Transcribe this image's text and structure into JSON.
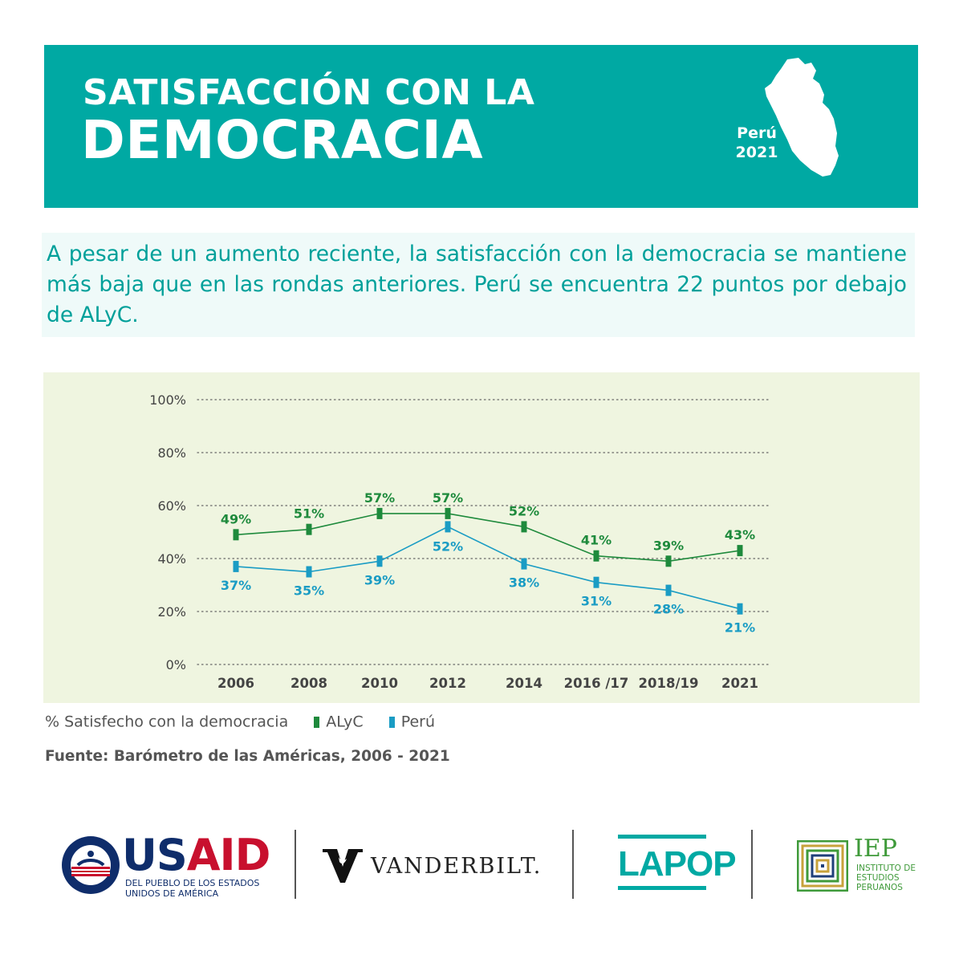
{
  "header": {
    "title_line1": "SATISFACCIÓN CON LA",
    "title_line2": "DEMOCRACIA",
    "country": "Perú",
    "year": "2021",
    "map_icon": "peru-map-icon",
    "background": "#00a9a3"
  },
  "intro": {
    "text": "A pesar de un aumento reciente, la satisfacción con la democracia se mantiene más baja que en las rondas anteriores. Perú se encuentra 22 puntos por debajo de ALyC."
  },
  "chart_data": {
    "type": "line",
    "categories": [
      "2006",
      "2008",
      "2010",
      "2012",
      "2014",
      "2016 /17",
      "2018/19",
      "2021"
    ],
    "series": [
      {
        "name": "ALyC",
        "color": "#1e8a3c",
        "values": [
          49,
          51,
          57,
          57,
          52,
          41,
          39,
          43
        ],
        "labels": [
          "49%",
          "51%",
          "57%",
          "57%",
          "52%",
          "41%",
          "39%",
          "43%"
        ]
      },
      {
        "name": "Perú",
        "color": "#1a9cc4",
        "values": [
          37,
          35,
          39,
          52,
          38,
          31,
          28,
          21
        ],
        "labels": [
          "37%",
          "35%",
          "39%",
          "52%",
          "38%",
          "31%",
          "28%",
          "21%"
        ]
      }
    ],
    "yticks": [
      "0%",
      "20%",
      "40%",
      "60%",
      "80%",
      "100%"
    ],
    "ylim": [
      0,
      100
    ],
    "grid": true,
    "legend": "bottom-left"
  },
  "legend": {
    "label": "% Satisfecho con la democracia",
    "items": [
      {
        "name": "ALyC",
        "color": "#1e8a3c"
      },
      {
        "name": "Perú",
        "color": "#1a9cc4"
      }
    ]
  },
  "source": "Fuente: Barómetro de las Américas, 2006 - 2021",
  "logos": {
    "usaid": {
      "wordmark_1": "US",
      "wordmark_2": "AID",
      "tagline_1": "DEL PUEBLO DE LOS ESTADOS",
      "tagline_2": "UNIDOS DE AMÉRICA",
      "seal_text": "USAID · UNITED STATES AGENCY · INTERNATIONAL DEVELOPMENT"
    },
    "vanderbilt": {
      "wordmark": "VANDERBILT."
    },
    "lapop": {
      "wordmark": "LAPOP"
    },
    "iep": {
      "wordmark": "IEP",
      "tagline_1": "INSTITUTO DE",
      "tagline_2": "ESTUDIOS",
      "tagline_3": "PERUANOS"
    }
  }
}
